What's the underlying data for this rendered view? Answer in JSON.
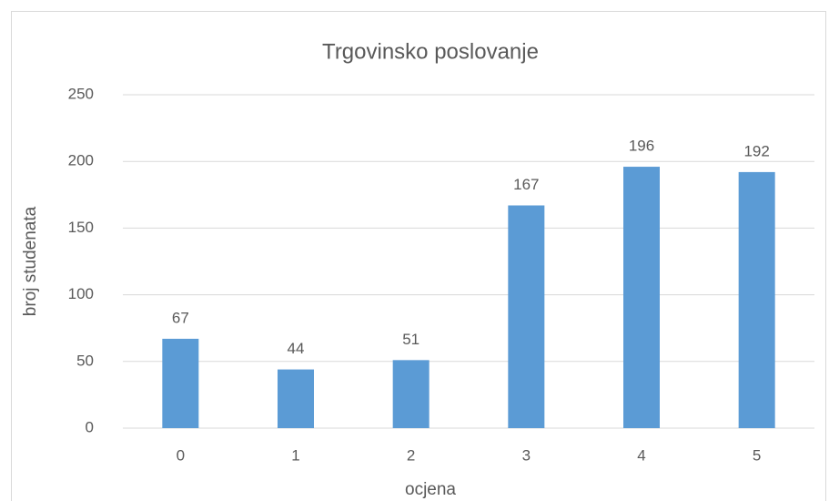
{
  "chart_data": {
    "type": "bar",
    "title": "Trgovinsko poslovanje",
    "x_label": "ocjena",
    "y_label": "broj studenata",
    "categories": [
      "0",
      "1",
      "2",
      "3",
      "4",
      "5"
    ],
    "values": [
      67,
      44,
      51,
      167,
      196,
      192
    ],
    "color": "#5b9bd5",
    "ylim": [
      0,
      250
    ],
    "yticks": [
      0,
      50,
      100,
      150,
      200,
      250
    ],
    "grid": true,
    "data_labels": true
  }
}
